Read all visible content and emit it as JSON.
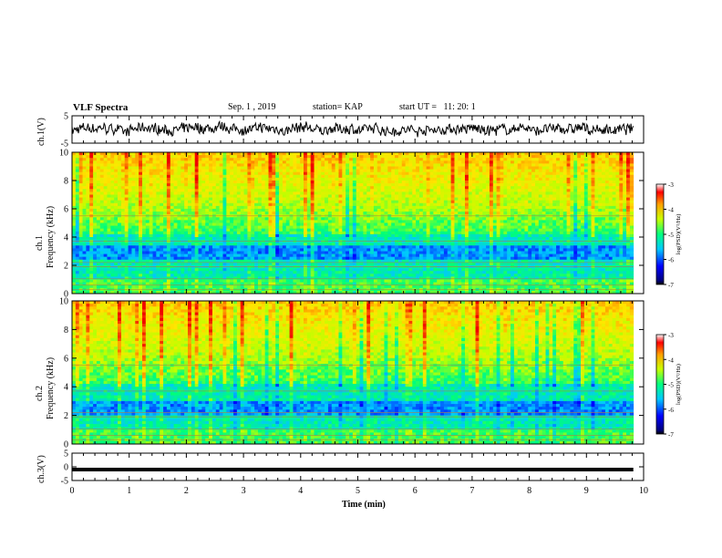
{
  "header": {
    "title": "VLF Spectra",
    "date": "Sep. 1 , 2019",
    "station": "station= KAP",
    "start_ut": "start UT =   11: 20: 1"
  },
  "panels": {
    "ch1_label": "ch.1(V)",
    "spec1_label_ch": "ch.1",
    "spec1_label_freq": "Frequency (kHz)",
    "spec2_label_ch": "ch.2",
    "spec2_label_freq": "Frequency (kHz)",
    "ch3_label": "ch.3(V)",
    "colorbar_label": "log(PSD)(V²/Hz)"
  },
  "xaxis": {
    "label": "Time  (min)"
  },
  "chart_data": [
    {
      "type": "line",
      "name": "ch.1 waveform",
      "ylabel": "ch.1(V)",
      "xlim": [
        0,
        10
      ],
      "ylim": [
        -5,
        5
      ],
      "yticks": [
        -5,
        5
      ],
      "description_values": "noisy waveform varying roughly between -3 and 3 V over 0-9.8 min"
    },
    {
      "type": "heatmap",
      "ylabel": "Frequency (kHz)",
      "ylim": [
        0,
        10
      ],
      "yticks": [
        0,
        2,
        4,
        6,
        8,
        10
      ],
      "xlim": [
        0,
        10
      ],
      "colorbar": {
        "label": "log(PSD)(V²/Hz)",
        "range": [
          -7,
          -3
        ],
        "ticks": [
          -3,
          -4,
          -5,
          -6,
          -7
        ]
      },
      "channel": "ch.1"
    },
    {
      "type": "heatmap",
      "ylabel": "Frequency (kHz)",
      "ylim": [
        0,
        10
      ],
      "yticks": [
        0,
        2,
        4,
        6,
        8,
        10
      ],
      "xlim": [
        0,
        10
      ],
      "colorbar": {
        "label": "log(PSD)(V²/Hz)",
        "range": [
          -7,
          -3
        ],
        "ticks": [
          -3,
          -4,
          -5,
          -6,
          -7
        ]
      },
      "channel": "ch.2"
    },
    {
      "type": "line",
      "name": "ch.3 waveform",
      "ylabel": "ch.3(V)",
      "xlim": [
        0,
        10
      ],
      "ylim": [
        -5,
        5
      ],
      "yticks": [
        -5,
        0,
        5
      ],
      "constant_value": -1
    }
  ],
  "xticks": [
    "0",
    "1",
    "2",
    "3",
    "4",
    "5",
    "6",
    "7",
    "8",
    "9",
    "10"
  ],
  "colors": {
    "axis": "#000000",
    "background": "#ffffff"
  }
}
